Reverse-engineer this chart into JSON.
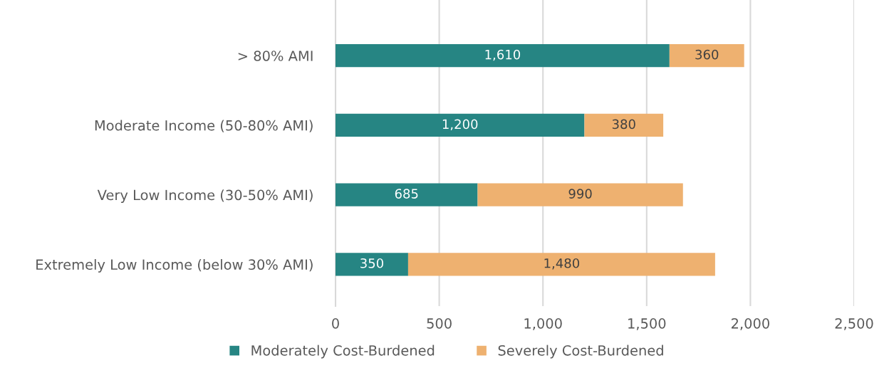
{
  "chart_data": {
    "type": "bar",
    "orientation": "horizontal",
    "stacked": true,
    "categories": [
      "> 80% AMI",
      "Moderate Income (50-80% AMI)",
      "Very Low Income (30-50% AMI)",
      "Extremely Low Income (below 30% AMI)"
    ],
    "series": [
      {
        "name": "Moderately Cost-Burdened",
        "color": "#268583",
        "values": [
          1610,
          1200,
          685,
          350
        ],
        "value_labels": [
          "1,610",
          "1,200",
          "685",
          "350"
        ]
      },
      {
        "name": "Severely Cost-Burdened",
        "color": "#eeb170",
        "values": [
          360,
          380,
          990,
          1480
        ],
        "value_labels": [
          "360",
          "380",
          "990",
          "1,480"
        ]
      }
    ],
    "xlim": [
      0,
      2500
    ],
    "xticks": [
      {
        "value": 0,
        "label": "0"
      },
      {
        "value": 500,
        "label": "500"
      },
      {
        "value": 1000,
        "label": "1,000"
      },
      {
        "value": 1500,
        "label": "1,500"
      },
      {
        "value": 2000,
        "label": "2,000"
      },
      {
        "value": 2500,
        "label": "2,500"
      }
    ],
    "grid": "x",
    "legend": "bottom"
  }
}
